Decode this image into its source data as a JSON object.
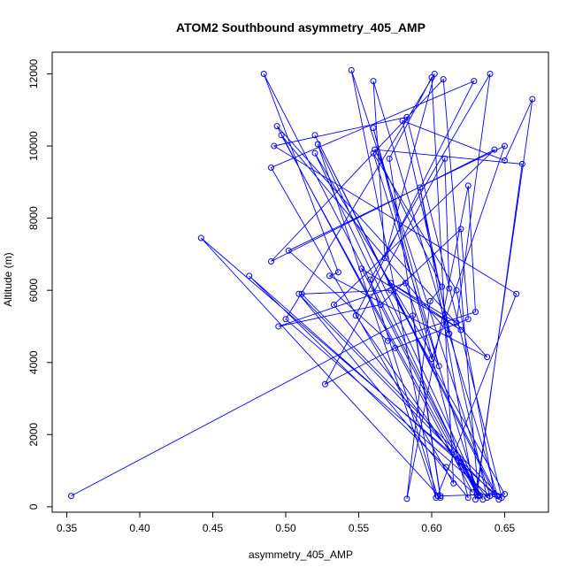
{
  "chart_data": {
    "type": "line",
    "title": "ATOM2 Southbound asymmetry_405_AMP",
    "xlabel": "asymmetry_405_AMP",
    "ylabel": "Altitude (m)",
    "xlim": [
      0.34,
      0.68
    ],
    "ylim": [
      -150,
      12600
    ],
    "x_ticks": [
      "0.35",
      "0.40",
      "0.45",
      "0.50",
      "0.55",
      "0.60",
      "0.65"
    ],
    "x_tick_values": [
      0.35,
      0.4,
      0.45,
      0.5,
      0.55,
      0.6,
      0.65
    ],
    "y_ticks": [
      "0",
      "2000",
      "4000",
      "6000",
      "8000",
      "10000",
      "12000"
    ],
    "y_tick_values": [
      0,
      2000,
      4000,
      6000,
      8000,
      10000,
      12000
    ],
    "grid": false,
    "markers": "open-circle",
    "series": [
      {
        "color": "#0000ff",
        "x": [
          0.353,
          0.587,
          0.606,
          0.442,
          0.62,
          0.633,
          0.485,
          0.536,
          0.53,
          0.638,
          0.494,
          0.628,
          0.61,
          0.475,
          0.645,
          0.56,
          0.568,
          0.602,
          0.5,
          0.64,
          0.545,
          0.603,
          0.522,
          0.635,
          0.548,
          0.629,
          0.49,
          0.615,
          0.6,
          0.571,
          0.606,
          0.65,
          0.572,
          0.511,
          0.648,
          0.583,
          0.492,
          0.658,
          0.604,
          0.558,
          0.64,
          0.617,
          0.572,
          0.62,
          0.552,
          0.632,
          0.52,
          0.605,
          0.56,
          0.625,
          0.509,
          0.646,
          0.52,
          0.643,
          0.617,
          0.56,
          0.632,
          0.608,
          0.49,
          0.643,
          0.533,
          0.638,
          0.58,
          0.65,
          0.669,
          0.63,
          0.592,
          0.612,
          0.497,
          0.631,
          0.662,
          0.561,
          0.607,
          0.599,
          0.583,
          0.625,
          0.63,
          0.57,
          0.502,
          0.65,
          0.6,
          0.582,
          0.495,
          0.565,
          0.62,
          0.625,
          0.575,
          0.527,
          0.609,
          0.612
        ],
        "y": [
          300,
          5300,
          250,
          7450,
          1250,
          320,
          12000,
          6500,
          6400,
          4150,
          10550,
          400,
          1100,
          6400,
          300,
          11800,
          6900,
          12000,
          5200,
          300,
          12100,
          250,
          10050,
          200,
          5300,
          11800,
          9400,
          650,
          11900,
          9650,
          300,
          350,
          6000,
          5900,
          250,
          10800,
          10000,
          5900,
          300,
          6300,
          12000,
          5100,
          6200,
          4900,
          6600,
          300,
          9800,
          3900,
          10500,
          250,
          5900,
          200,
          10300,
          350,
          6000,
          9800,
          320,
          11850,
          6800,
          9900,
          5600,
          250,
          10700,
          9600,
          11300,
          200,
          8850,
          4800,
          10300,
          350,
          9500,
          9900,
          6100,
          5700,
          220,
          8900,
          5400,
          4600,
          7100,
          10000,
          4100,
          6200,
          5000,
          5600,
          7700,
          5200,
          4400,
          3400,
          9650,
          6050
        ]
      }
    ]
  }
}
